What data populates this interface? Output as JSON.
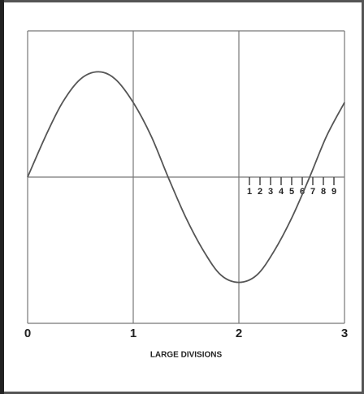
{
  "chart_data": {
    "type": "line",
    "x_label": "LARGE DIVISIONS",
    "x": [
      0,
      0.17,
      0.33,
      0.5,
      0.67,
      0.83,
      1,
      1.17,
      1.33,
      1.5,
      1.67,
      1.83,
      2,
      2.17,
      2.33,
      2.5,
      2.67,
      2.83,
      3
    ],
    "series": [
      {
        "color": "#555555",
        "values": [
          0,
          0.28,
          0.51,
          0.67,
          0.72,
          0.67,
          0.51,
          0.28,
          0,
          -0.28,
          -0.51,
          -0.67,
          -0.72,
          -0.67,
          -0.51,
          -0.28,
          0,
          0.28,
          0.51
        ]
      }
    ],
    "xlim": [
      0,
      3
    ],
    "xticks": [
      0,
      1,
      2,
      3
    ],
    "ylim": [
      -1,
      1
    ],
    "yticks": [
      -1,
      0,
      1
    ],
    "minor_ticks": [
      {
        "value": 2.1,
        "label": "1"
      },
      {
        "value": 2.2,
        "label": "2"
      },
      {
        "value": 2.3,
        "label": "3"
      },
      {
        "value": 2.4,
        "label": "4"
      },
      {
        "value": 2.5,
        "label": "5"
      },
      {
        "value": 2.6,
        "label": "6"
      },
      {
        "value": 2.7,
        "label": "7"
      },
      {
        "value": 2.8,
        "label": "8"
      },
      {
        "value": 2.9,
        "label": "9"
      }
    ],
    "grid": true
  }
}
